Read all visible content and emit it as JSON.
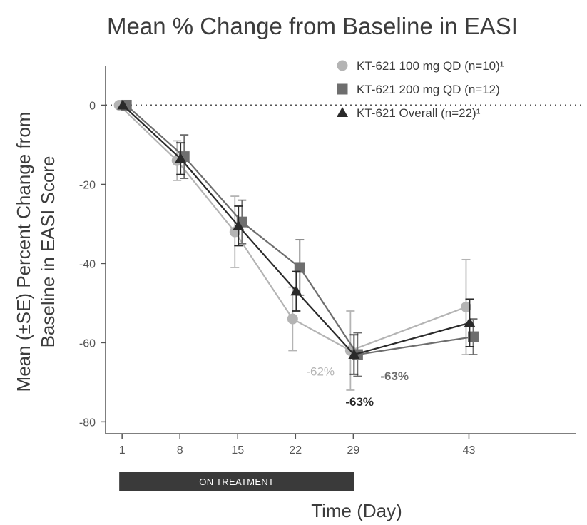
{
  "chart_data": {
    "type": "line",
    "title": "Mean % Change from Baseline in EASI",
    "xlabel": "Time (Day)",
    "ylabel_lines": [
      "Mean (±SE) Percent Change from",
      "Baseline in EASI Score"
    ],
    "xlim": [
      -1,
      56
    ],
    "ylim": [
      -83,
      10
    ],
    "xticks": [
      1,
      8,
      15,
      22,
      29,
      43
    ],
    "yticks": [
      0,
      -20,
      -40,
      -60,
      -80
    ],
    "baseline_reference": 0,
    "legend_position": "top-right",
    "treatment_band": {
      "label": "ON TREATMENT",
      "start": 1,
      "end": 29
    },
    "series": [
      {
        "name": "KT-621 100 mg QD (n=10)¹",
        "marker": "circle",
        "color": "#b4b4b4",
        "x": [
          1,
          8,
          15,
          22,
          29,
          43
        ],
        "y": [
          0,
          -14,
          -32,
          -54,
          -62,
          -51
        ],
        "err": [
          0,
          5,
          9,
          8,
          10,
          12
        ]
      },
      {
        "name": "KT-621 200 mg QD (n=12)",
        "marker": "square",
        "color": "#6e6e6e",
        "x": [
          1,
          8,
          15,
          22,
          29,
          43
        ],
        "y": [
          0,
          -13,
          -29.5,
          -41,
          -63,
          -58.5
        ],
        "err": [
          0,
          5.5,
          5.5,
          7,
          5.5,
          4.5
        ]
      },
      {
        "name": "KT-621 Overall (n=22)¹",
        "marker": "triangle",
        "color": "#2a2a2a",
        "x": [
          1,
          8,
          15,
          22,
          29,
          43
        ],
        "y": [
          0,
          -13.5,
          -30.5,
          -47,
          -63,
          -55
        ],
        "err": [
          0,
          4,
          5,
          5,
          5,
          6
        ]
      }
    ],
    "annotations": [
      {
        "text": "-62%",
        "series": 0
      },
      {
        "text": "-63%",
        "series": 1
      },
      {
        "text": "-63%",
        "series": 2
      }
    ]
  }
}
